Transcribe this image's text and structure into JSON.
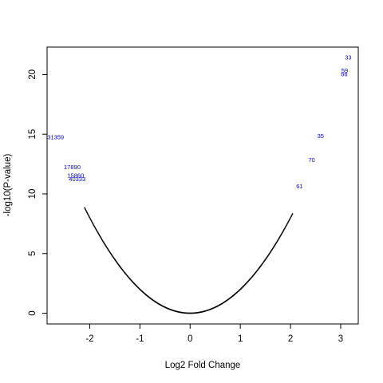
{
  "chart_data": {
    "type": "scatter",
    "title": "",
    "xlabel": "Log2 Fold Change",
    "ylabel": "-log10(P-value)",
    "xlim": [
      -2.85,
      3.35
    ],
    "ylim": [
      -0.9,
      22.3
    ],
    "x_ticks": [
      -2,
      -1,
      0,
      1,
      2,
      3
    ],
    "y_ticks": [
      0,
      5,
      10,
      15,
      20
    ],
    "grid": false,
    "point_color": "#000000",
    "label_color": "#0000cc",
    "curve": {
      "relation": "y = 2.0 * x^2",
      "x_min": -2.1,
      "x_max": 2.05,
      "step": 0.012
    },
    "labeled_points": [
      {
        "label": "31359",
        "x": -2.68,
        "y": 14.7
      },
      {
        "label": "17890",
        "x": -2.35,
        "y": 12.2
      },
      {
        "label": "15860",
        "x": -2.28,
        "y": 11.5
      },
      {
        "label": "40333",
        "x": -2.25,
        "y": 11.2
      },
      {
        "label": "33",
        "x": 3.15,
        "y": 21.4
      },
      {
        "label": "59",
        "x": 3.08,
        "y": 20.3
      },
      {
        "label": "66",
        "x": 3.07,
        "y": 20.0
      },
      {
        "label": "35",
        "x": 2.6,
        "y": 14.8
      },
      {
        "label": "70",
        "x": 2.42,
        "y": 12.8
      },
      {
        "label": "61",
        "x": 2.18,
        "y": 10.6
      }
    ]
  }
}
